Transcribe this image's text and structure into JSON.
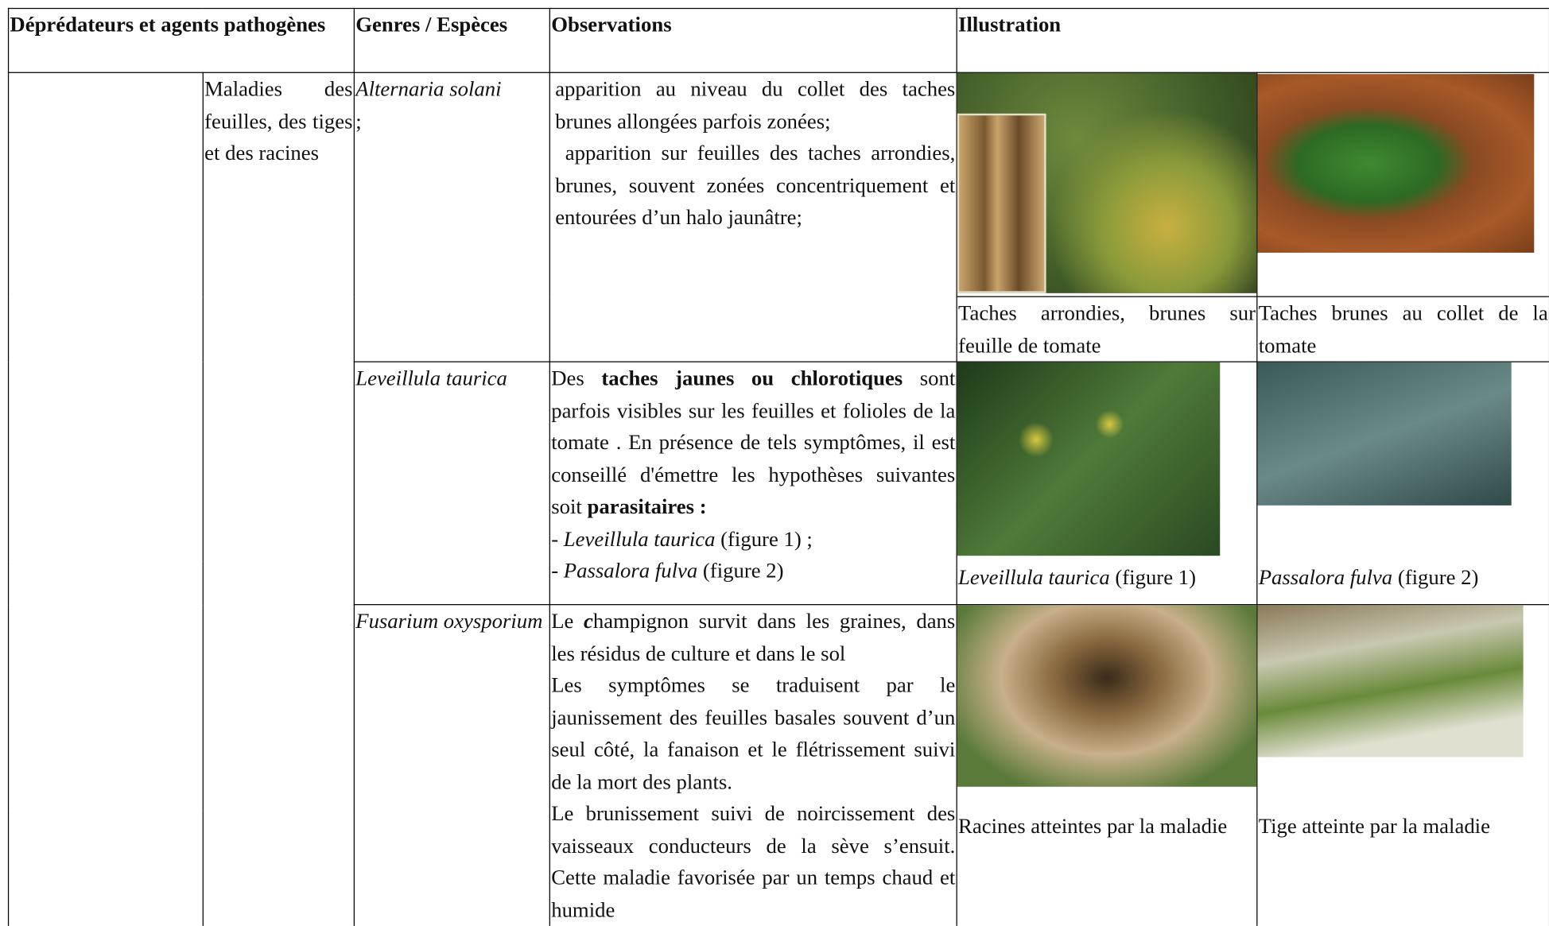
{
  "header": [
    "Déprédateurs et agents pathogènes",
    "Genres / Espèces",
    "Observations",
    "Illustration"
  ],
  "category": "Maladies des feuilles, des tiges et des racines",
  "rows": [
    {
      "species": [
        "Alternaria solani",
        ";"
      ],
      "observations": [
        [
          "apparition au niveau du collet des taches brunes allongées parfois zonées;"
        ],
        [
          " apparition sur feuilles des taches arrondies, brunes, souvent zonées concentriquement et entourées d’un halo jaunâtre;"
        ]
      ],
      "captions": [
        [
          "Taches arrondies, brunes sur feuille de tomate"
        ],
        [
          "Taches brunes au collet de la tomate"
        ]
      ]
    },
    {
      "species": [
        "Leveillula taurica"
      ],
      "observations": [
        [
          "Des ",
          "taches jaunes ou chlorotiques",
          " sont parfois visibles sur les feuilles et folioles de la tomate . En présence de tels symptômes, il est conseillé d'émettre les hypothèses suivantes soit ",
          "parasitaires :"
        ],
        [
          "- ",
          "Leveillula taurica",
          " (figure 1) ;"
        ],
        [
          "- ",
          "Passalora fulva",
          " (figure 2)"
        ]
      ],
      "captions": [
        [
          "Leveillula taurica",
          " (figure 1)"
        ],
        [
          "Passalora fulva",
          " (figure 2)"
        ]
      ]
    },
    {
      "species": [
        "Fusarium oxysporium"
      ],
      "observations": [
        [
          "Le ",
          "c",
          "hampignon survit dans les graines, dans les résidus de culture et dans le sol"
        ],
        [
          "Les symptômes se traduisent par le jaunissement des feuilles basales souvent d’un seul côté, la fanaison et le flétrissement suivi de la mort des plants."
        ],
        [
          "Le brunissement suivi de noircissement des vaisseaux conducteurs de la sève s’ensuit. Cette maladie favorisée par un temps chaud et humide"
        ]
      ],
      "captions": [
        [
          "Racines atteintes par la maladie"
        ],
        [
          "Tige atteinte par la maladie"
        ]
      ]
    }
  ]
}
